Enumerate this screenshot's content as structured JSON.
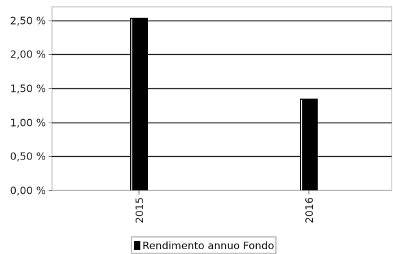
{
  "chart_data": {
    "type": "bar",
    "title": "",
    "xlabel": "",
    "ylabel": "",
    "categories": [
      "2015",
      "2016"
    ],
    "series": [
      {
        "name": "Rendimento annuo Fondo",
        "values": [
          2.54,
          1.35
        ]
      }
    ],
    "ylim": [
      0,
      2.7
    ],
    "yticks": [
      0,
      0.5,
      1.0,
      1.5,
      2.0,
      2.5
    ],
    "ytick_labels": [
      "0,00 %",
      "0,50 %",
      "1,00 %",
      "1,50 %",
      "2,00 %",
      "2,50 %"
    ],
    "grid": true,
    "legend_position": "bottom-center",
    "colors": {
      "bar": "#000000",
      "grid": "#1a1a1a",
      "frame": "#b3b3b3",
      "background": "#ffffff"
    }
  }
}
